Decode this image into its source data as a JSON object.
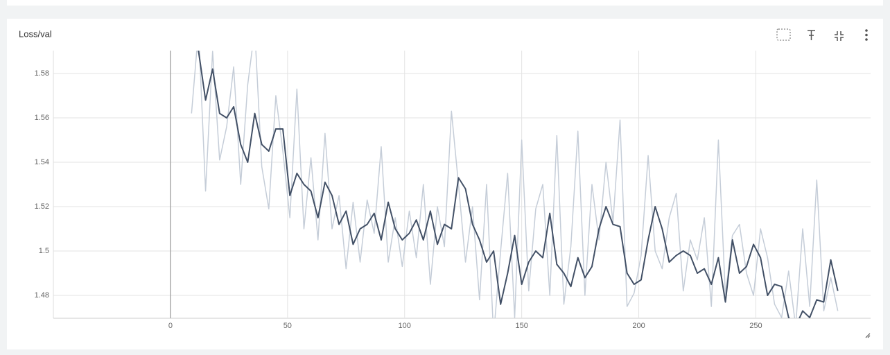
{
  "chart_data": {
    "type": "line",
    "title": "Loss/val",
    "x": [
      9,
      12,
      15,
      18,
      21,
      24,
      27,
      30,
      33,
      36,
      39,
      42,
      45,
      48,
      51,
      54,
      57,
      60,
      63,
      66,
      69,
      72,
      75,
      78,
      81,
      84,
      87,
      90,
      93,
      96,
      99,
      102,
      105,
      108,
      111,
      114,
      117,
      120,
      123,
      126,
      129,
      132,
      135,
      138,
      141,
      144,
      147,
      150,
      153,
      156,
      159,
      162,
      165,
      168,
      171,
      174,
      177,
      180,
      183,
      186,
      189,
      192,
      195,
      198,
      201,
      204,
      207,
      210,
      213,
      216,
      219,
      222,
      225,
      228,
      231,
      234,
      237,
      240,
      243,
      246,
      249,
      252,
      255,
      258,
      261,
      264,
      267,
      270,
      273,
      276,
      279,
      282,
      285
    ],
    "series": [
      {
        "color": "#c5cdd8",
        "values": [
          1.562,
          1.6,
          1.527,
          1.59,
          1.541,
          1.556,
          1.583,
          1.53,
          1.575,
          1.6,
          1.538,
          1.519,
          1.57,
          1.545,
          1.515,
          1.573,
          1.51,
          1.542,
          1.505,
          1.553,
          1.51,
          1.525,
          1.492,
          1.522,
          1.495,
          1.523,
          1.508,
          1.547,
          1.495,
          1.515,
          1.493,
          1.518,
          1.497,
          1.53,
          1.485,
          1.52,
          1.502,
          1.563,
          1.53,
          1.495,
          1.52,
          1.478,
          1.53,
          1.462,
          1.5,
          1.535,
          1.47,
          1.55,
          1.482,
          1.519,
          1.53,
          1.48,
          1.552,
          1.476,
          1.502,
          1.554,
          1.48,
          1.53,
          1.505,
          1.54,
          1.513,
          1.559,
          1.475,
          1.481,
          1.498,
          1.543,
          1.5,
          1.492,
          1.515,
          1.526,
          1.482,
          1.505,
          1.496,
          1.515,
          1.475,
          1.55,
          1.48,
          1.507,
          1.512,
          1.49,
          1.48,
          1.51,
          1.497,
          1.476,
          1.47,
          1.491,
          1.466,
          1.51,
          1.475,
          1.532,
          1.473,
          1.488,
          1.473
        ]
      },
      {
        "color": "#425066",
        "values": [
          1.6,
          1.59,
          1.568,
          1.582,
          1.562,
          1.56,
          1.565,
          1.548,
          1.54,
          1.562,
          1.548,
          1.545,
          1.555,
          1.555,
          1.525,
          1.535,
          1.53,
          1.527,
          1.515,
          1.531,
          1.525,
          1.512,
          1.518,
          1.503,
          1.51,
          1.512,
          1.517,
          1.505,
          1.522,
          1.51,
          1.505,
          1.508,
          1.514,
          1.505,
          1.518,
          1.503,
          1.512,
          1.51,
          1.533,
          1.528,
          1.512,
          1.505,
          1.495,
          1.5,
          1.476,
          1.49,
          1.507,
          1.485,
          1.495,
          1.5,
          1.497,
          1.517,
          1.494,
          1.49,
          1.484,
          1.497,
          1.488,
          1.493,
          1.51,
          1.52,
          1.512,
          1.511,
          1.49,
          1.485,
          1.487,
          1.505,
          1.52,
          1.51,
          1.495,
          1.498,
          1.5,
          1.498,
          1.49,
          1.492,
          1.485,
          1.497,
          1.477,
          1.505,
          1.49,
          1.493,
          1.503,
          1.497,
          1.48,
          1.485,
          1.484,
          1.47,
          1.466,
          1.473,
          1.47,
          1.478,
          1.477,
          1.496,
          1.482
        ]
      }
    ],
    "xlim": [
      -50,
      299
    ],
    "xticks": [
      0,
      50,
      100,
      150,
      200,
      250
    ],
    "ylim": [
      1.4697,
      1.5903
    ],
    "yticks": [
      1.48,
      1.5,
      1.52,
      1.54,
      1.56,
      1.58
    ],
    "grid": true
  }
}
